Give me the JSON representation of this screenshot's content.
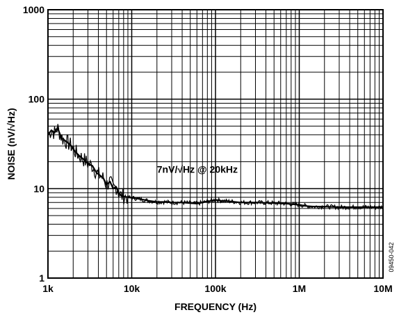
{
  "chart_data": {
    "type": "line",
    "title": "",
    "xlabel": "FREQUENCY (Hz)",
    "ylabel": "NOISE (nV/√Hz)",
    "x_scale": "log",
    "y_scale": "log",
    "xlim": [
      1000,
      10000000
    ],
    "ylim": [
      1,
      1000
    ],
    "grid": true,
    "x_ticks": [
      {
        "value": 1000,
        "label": "1k"
      },
      {
        "value": 10000,
        "label": "10k"
      },
      {
        "value": 100000,
        "label": "100k"
      },
      {
        "value": 1000000,
        "label": "1M"
      },
      {
        "value": 10000000,
        "label": "10M"
      }
    ],
    "y_ticks": [
      {
        "value": 1,
        "label": "1"
      },
      {
        "value": 10,
        "label": "10"
      },
      {
        "value": 100,
        "label": "100"
      },
      {
        "value": 1000,
        "label": "1000"
      }
    ],
    "annotation": {
      "text": "7nV/√Hz @ 20kHz",
      "x": 20000,
      "y": 15
    },
    "figure_code": "09450-042",
    "series": [
      {
        "color": "#000000",
        "x": [
          1000,
          1100,
          1200,
          1300,
          1400,
          1500,
          1700,
          1900,
          2100,
          2400,
          2700,
          3000,
          3400,
          3800,
          4200,
          4600,
          5000,
          5500,
          6000,
          6500,
          7000,
          7500,
          8000,
          9000,
          10000,
          11000,
          12000,
          14000,
          16000,
          20000,
          25000,
          30000,
          40000,
          50000,
          60000,
          70000,
          80000,
          90000,
          100000,
          110000,
          120000,
          150000,
          200000,
          300000,
          500000,
          700000,
          1000000,
          1200000,
          1500000,
          2000000,
          3000000,
          5000000,
          7000000,
          10000000
        ],
        "y": [
          40,
          45,
          42,
          48,
          40,
          36,
          33,
          30,
          26,
          23,
          21,
          19,
          18,
          15,
          14,
          13,
          11,
          12,
          10,
          10.5,
          9,
          8.3,
          8.2,
          8,
          7.9,
          7.8,
          7.7,
          7.5,
          7.3,
          7.1,
          7.1,
          7.0,
          7.0,
          6.9,
          6.8,
          7.0,
          7.2,
          7.3,
          7.5,
          7.4,
          7.3,
          7.2,
          7.0,
          7.0,
          6.9,
          6.8,
          6.6,
          6.4,
          6.3,
          6.3,
          6.2,
          6.2,
          6.2,
          6.2
        ]
      }
    ]
  }
}
